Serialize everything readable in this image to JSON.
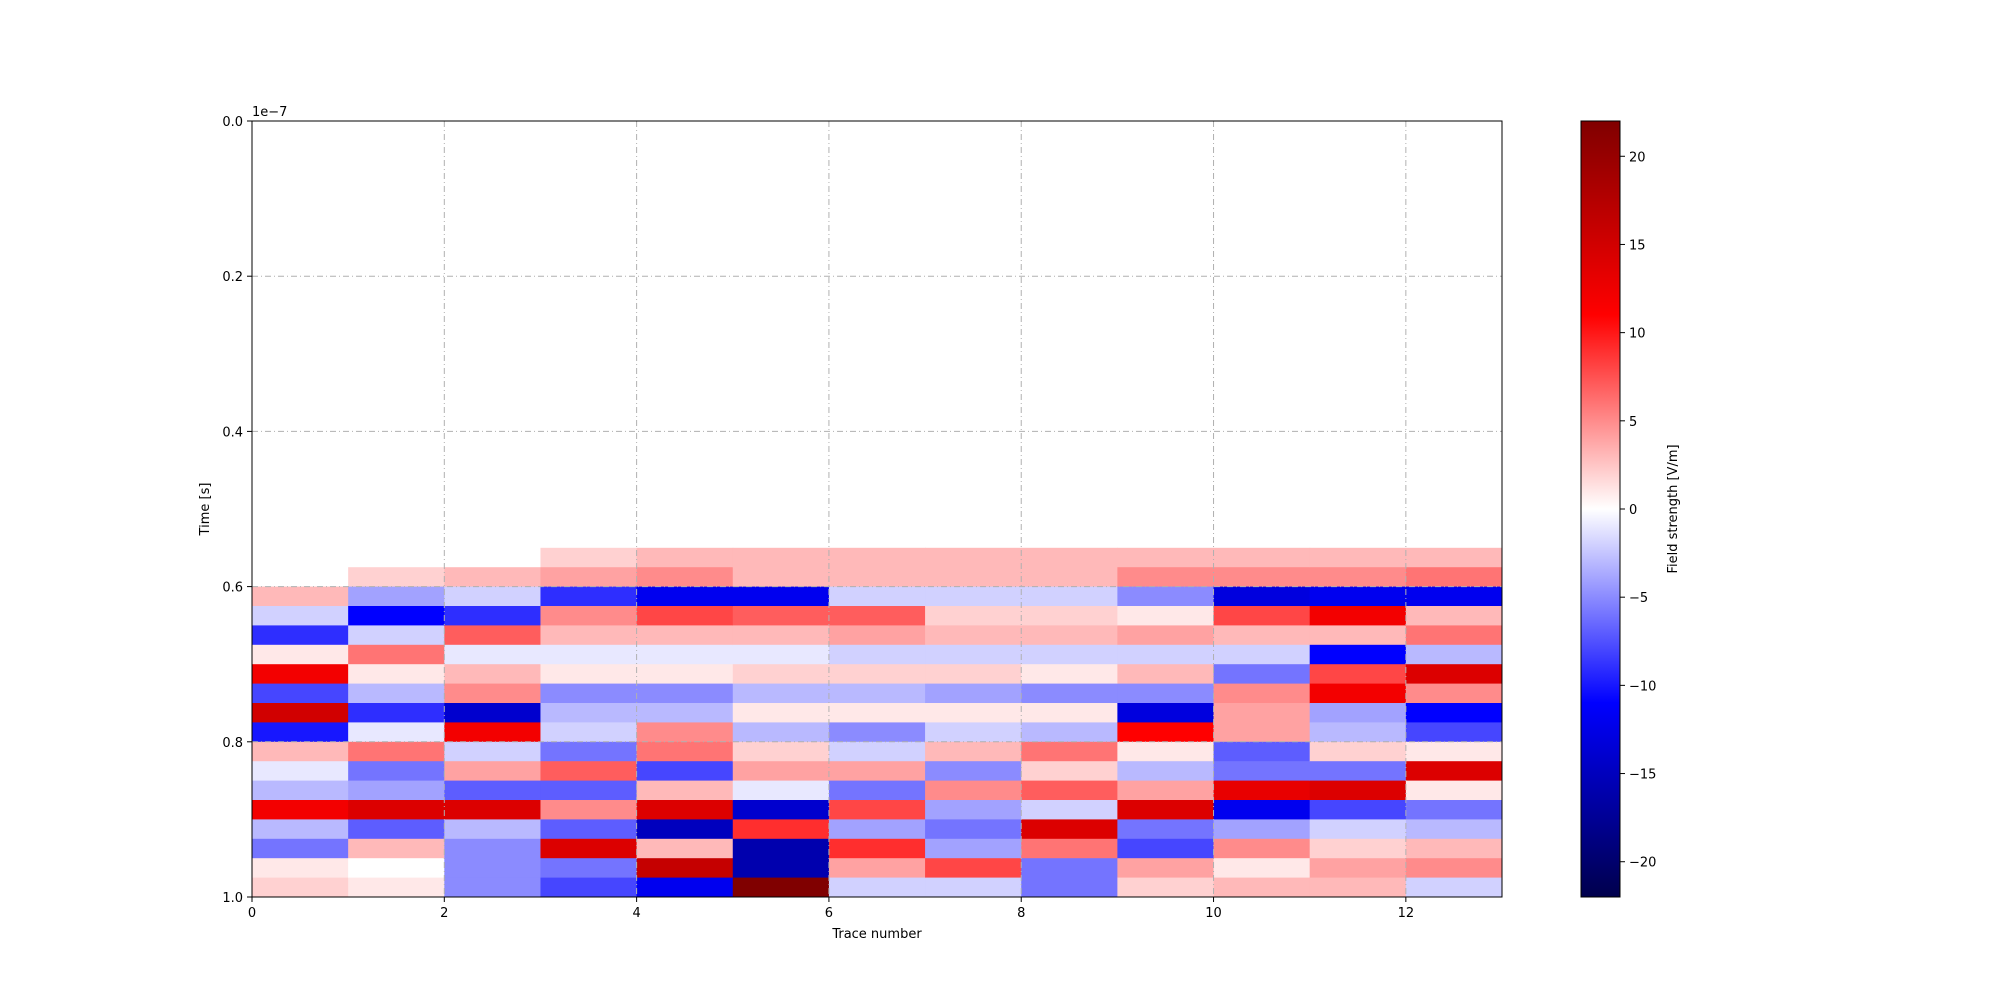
{
  "chart_data": {
    "type": "heatmap",
    "title": "",
    "xlabel": "Trace number",
    "ylabel": "Time [s]",
    "y_offset_label": "1e−7",
    "colorbar_label": "Field strength [V/m]",
    "colormap": "seismic",
    "grid": true,
    "xlim": [
      0,
      13
    ],
    "ylim": [
      1.0,
      0.0
    ],
    "y_inverted": true,
    "x_ticks": [
      0,
      2,
      4,
      6,
      8,
      10,
      12
    ],
    "y_ticks": [
      0.0,
      0.2,
      0.4,
      0.6,
      0.8,
      1.0
    ],
    "y_tick_labels": [
      "0.0",
      "0.2",
      "0.4",
      "0.6",
      "0.8",
      "1.0"
    ],
    "color_range": [
      -22,
      22
    ],
    "colorbar_ticks": [
      20,
      15,
      10,
      5,
      0,
      -5,
      -10,
      -15,
      -20
    ],
    "colorbar_tick_labels": [
      "20",
      "15",
      "10",
      "5",
      "0",
      "−5",
      "−10",
      "−15",
      "−20"
    ],
    "time_bins": [
      0.55,
      0.575,
      0.6,
      0.625,
      0.65,
      0.675,
      0.7,
      0.725,
      0.75,
      0.775,
      0.8,
      0.825,
      0.85,
      0.875,
      0.9,
      0.925,
      0.95,
      0.975
    ],
    "traces": [
      {
        "trace": 0,
        "values": [
          0,
          0,
          3,
          -2,
          -9,
          1,
          12,
          -8,
          15,
          -10,
          3,
          -1,
          -3,
          12,
          -3,
          -6,
          1,
          2
        ]
      },
      {
        "trace": 1,
        "values": [
          0,
          2,
          -4,
          -11,
          -2,
          6,
          1,
          -3,
          -9,
          -1,
          6,
          -6,
          -4,
          14,
          -7,
          3,
          0,
          1
        ]
      },
      {
        "trace": 2,
        "values": [
          0,
          3,
          -2,
          -9,
          7,
          -1,
          3,
          5,
          -14,
          12,
          -2,
          4,
          -7,
          14,
          -3,
          -5,
          -5,
          -5
        ]
      },
      {
        "trace": 3,
        "values": [
          2,
          4,
          -9,
          5,
          3,
          -1,
          1,
          -5,
          -3,
          -2,
          -6,
          7,
          -7,
          5,
          -7,
          14,
          -6,
          -8
        ]
      },
      {
        "trace": 4,
        "values": [
          3,
          5,
          -12,
          8,
          3,
          -1,
          1,
          -5,
          -3,
          5,
          6,
          -8,
          3,
          14,
          -15,
          3,
          16,
          -12
        ]
      },
      {
        "trace": 5,
        "values": [
          3,
          3,
          -12,
          7,
          3,
          -1,
          2,
          -3,
          1,
          -3,
          2,
          4,
          -1,
          -14,
          9,
          -16,
          -16,
          22
        ]
      },
      {
        "trace": 6,
        "values": [
          3,
          3,
          -2,
          7,
          4,
          -2,
          2,
          -3,
          1,
          -5,
          -2,
          4,
          -6,
          8,
          -4,
          9,
          4,
          -2
        ]
      },
      {
        "trace": 7,
        "values": [
          3,
          3,
          -2,
          2,
          3,
          -2,
          2,
          -4,
          1,
          -2,
          3,
          -5,
          5,
          -4,
          -6,
          -4,
          8,
          -2
        ]
      },
      {
        "trace": 8,
        "values": [
          3,
          3,
          -2,
          2,
          3,
          -2,
          1,
          -5,
          1,
          -3,
          6,
          2,
          7,
          -2,
          14,
          6,
          -6,
          -6
        ]
      },
      {
        "trace": 9,
        "values": [
          3,
          5,
          -5,
          1,
          4,
          -2,
          3,
          -5,
          -13,
          11,
          1,
          -3,
          4,
          14,
          -6,
          -8,
          4,
          2
        ]
      },
      {
        "trace": 10,
        "values": [
          3,
          5,
          -13,
          8,
          3,
          -2,
          -6,
          5,
          4,
          4,
          -7,
          -6,
          13,
          -12,
          -4,
          5,
          1,
          3
        ]
      },
      {
        "trace": 11,
        "values": [
          3,
          5,
          -12,
          12,
          3,
          -11,
          8,
          12,
          -4,
          -3,
          2,
          -6,
          14,
          -8,
          -2,
          2,
          4,
          3
        ]
      },
      {
        "trace": 12,
        "values": [
          3,
          6,
          -12,
          3,
          6,
          -3,
          14,
          5,
          -11,
          -8,
          1,
          14,
          1,
          -6,
          -3,
          3,
          5,
          -2
        ]
      }
    ]
  }
}
